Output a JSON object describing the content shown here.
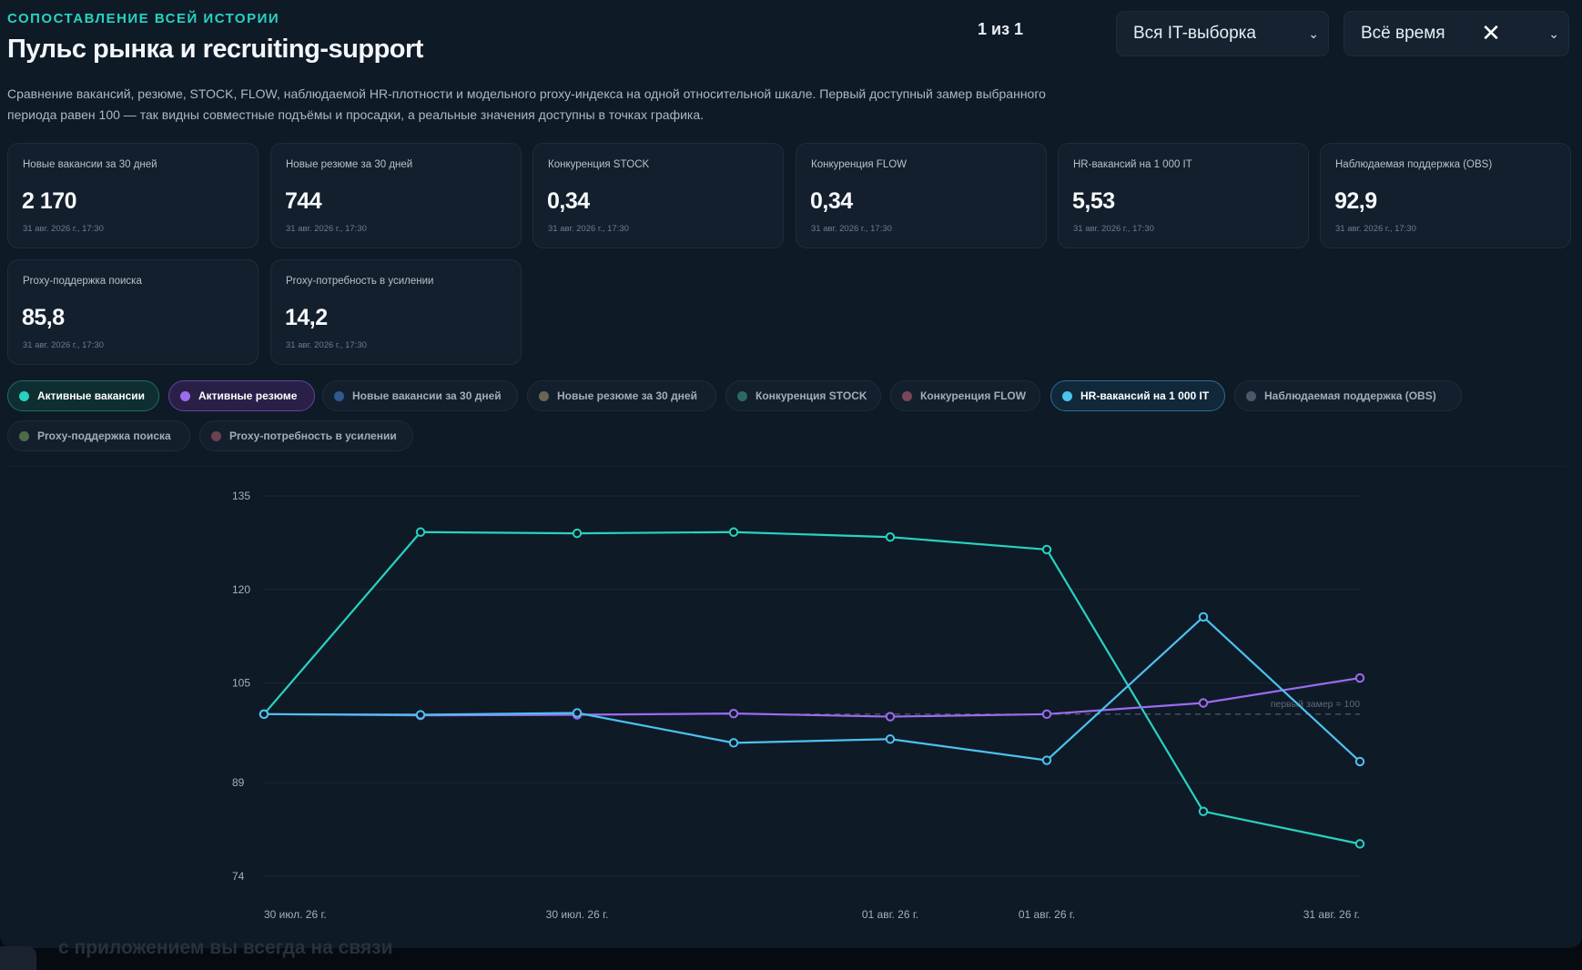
{
  "header": {
    "eyebrow": "СОПОСТАВЛЕНИЕ ВСЕЙ ИСТОРИИ",
    "title": "Пульс рынка и recruiting-support",
    "pager": "1 из 1",
    "description": "Сравнение вакансий, резюме, STOCK, FLOW, наблюдаемой HR-плотности и модельного proxy-индекса на одной относительной шкале. Первый доступный замер выбранного периода равен 100 — так видны совместные подъёмы и просадки, а реальные значения доступны в точках графика."
  },
  "filters": {
    "sample": {
      "value": "Вся IT-выборка",
      "icon": "chevron-down-icon"
    },
    "period": {
      "value": "Всё время",
      "clear_icon": "close-icon",
      "icon": "chevron-down-icon"
    }
  },
  "kpis": [
    {
      "label": "Новые вакансии за 30 дней",
      "value": "2 170",
      "timestamp": "31 авг. 2026 г., 17:30"
    },
    {
      "label": "Новые резюме за 30 дней",
      "value": "744",
      "timestamp": "31 авг. 2026 г., 17:30"
    },
    {
      "label": "Конкуренция STOCK",
      "value": "0,34",
      "timestamp": "31 авг. 2026 г., 17:30"
    },
    {
      "label": "Конкуренция FLOW",
      "value": "0,34",
      "timestamp": "31 авг. 2026 г., 17:30"
    },
    {
      "label": "HR-вакансий на 1 000 IT",
      "value": "5,53",
      "timestamp": "31 авг. 2026 г., 17:30"
    },
    {
      "label": "Наблюдаемая поддержка (OBS)",
      "value": "92,9",
      "timestamp": "31 авг. 2026 г., 17:30"
    },
    {
      "label": "Proxy-поддержка поиска",
      "value": "85,8",
      "timestamp": "31 авг. 2026 г., 17:30"
    },
    {
      "label": "Proxy-потребность в усилении",
      "value": "14,2",
      "timestamp": "31 авг. 2026 г., 17:30"
    }
  ],
  "toggles": [
    {
      "label": "Активные вакансии",
      "active": true,
      "color": "#27d3c0"
    },
    {
      "label": "Активные резюме",
      "active": true,
      "color": "#9b6cf0"
    },
    {
      "label": "Новые вакансии за 30 дней",
      "active": false,
      "color": "#2f5a8c"
    },
    {
      "label": "Новые резюме за 30 дней",
      "active": false,
      "color": "#6a6552"
    },
    {
      "label": "Конкуренция STOCK",
      "active": false,
      "color": "#2a6a62"
    },
    {
      "label": "Конкуренция FLOW",
      "active": false,
      "color": "#7a4658"
    },
    {
      "label": "HR-вакансий на 1 000 IT",
      "active": true,
      "color": "#4cc2ee"
    },
    {
      "label": "Наблюдаемая поддержка (OBS)",
      "active": false,
      "color": "#4d5866"
    },
    {
      "label": "Proxy-поддержка поиска",
      "active": false,
      "color": "#4f6a4a"
    },
    {
      "label": "Proxy-потребность в усилении",
      "active": false,
      "color": "#6d4250"
    }
  ],
  "chart_data": {
    "type": "line",
    "y_ticks": [
      135,
      120,
      105,
      89,
      74
    ],
    "ylim": [
      74,
      135
    ],
    "x_tick_labels": [
      "30 июл. 26 г.",
      "30 июл. 26 г.",
      "01 авг. 26 г.",
      "01 авг. 26 г.",
      "31 авг. 26 г."
    ],
    "x_tick_points": [
      0,
      2,
      4,
      5,
      7
    ],
    "n_points": 8,
    "reference": {
      "value": 100,
      "label": "первый замер = 100"
    },
    "series": [
      {
        "name": "Активные вакансии",
        "color": "#27d3c0",
        "values": [
          100,
          129.2,
          129,
          129.2,
          128.4,
          126.4,
          84.4,
          79.2
        ]
      },
      {
        "name": "Активные резюме",
        "color": "#9b6cf0",
        "values": [
          100,
          99.8,
          99.9,
          100.1,
          99.6,
          100,
          101.8,
          105.8
        ]
      },
      {
        "name": "HR-вакансий на 1 000 IT",
        "color": "#4cc2ee",
        "values": [
          100,
          99.9,
          100.2,
          95.4,
          96,
          92.6,
          115.6,
          92.4
        ]
      }
    ]
  }
}
